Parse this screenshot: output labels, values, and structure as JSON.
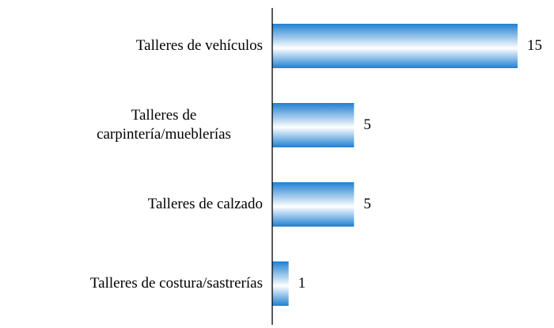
{
  "chart_data": {
    "type": "bar",
    "orientation": "horizontal",
    "categories": [
      "Talleres de vehículos",
      "Talleres de carpintería/mueblerías",
      "Talleres de calzado",
      "Talleres de costura/sastrerías"
    ],
    "values": [
      15,
      5,
      5,
      1
    ],
    "color": "#1f80d2"
  }
}
